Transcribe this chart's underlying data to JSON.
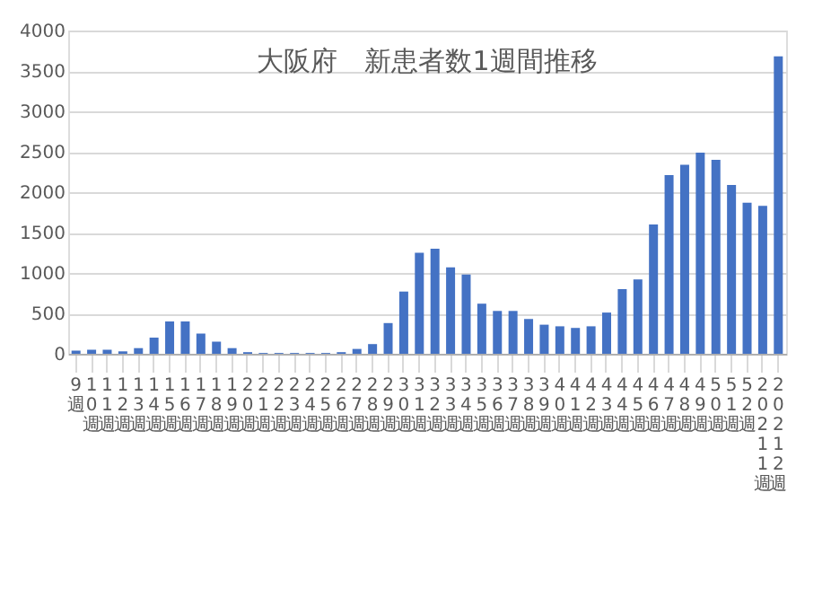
{
  "chart_data": {
    "type": "bar",
    "title": "大阪府　新患者数1週間推移",
    "categories": [
      "9週",
      "10週",
      "11週",
      "12週",
      "13週",
      "14週",
      "15週",
      "16週",
      "17週",
      "18週",
      "19週",
      "20週",
      "21週",
      "22週",
      "23週",
      "24週",
      "25週",
      "26週",
      "27週",
      "28週",
      "29週",
      "30週",
      "31週",
      "32週",
      "33週",
      "34週",
      "35週",
      "36週",
      "37週",
      "38週",
      "39週",
      "40週",
      "41週",
      "42週",
      "43週",
      "44週",
      "45週",
      "46週",
      "47週",
      "48週",
      "49週",
      "50週",
      "51週",
      "52週",
      "20211週",
      "20212週"
    ],
    "values": [
      40,
      50,
      50,
      30,
      70,
      200,
      400,
      400,
      250,
      150,
      70,
      20,
      10,
      10,
      10,
      10,
      10,
      20,
      60,
      120,
      380,
      770,
      1250,
      1300,
      1070,
      980,
      620,
      530,
      530,
      430,
      360,
      340,
      320,
      340,
      510,
      800,
      920,
      1600,
      2210,
      2340,
      2490,
      2400,
      2090,
      1870,
      1830,
      3680
    ],
    "color": "#4472c4",
    "ylim": [
      0,
      4000
    ],
    "yticks": [
      0,
      500,
      1000,
      1500,
      2000,
      2500,
      3000,
      3500,
      4000
    ],
    "grid": "y"
  }
}
